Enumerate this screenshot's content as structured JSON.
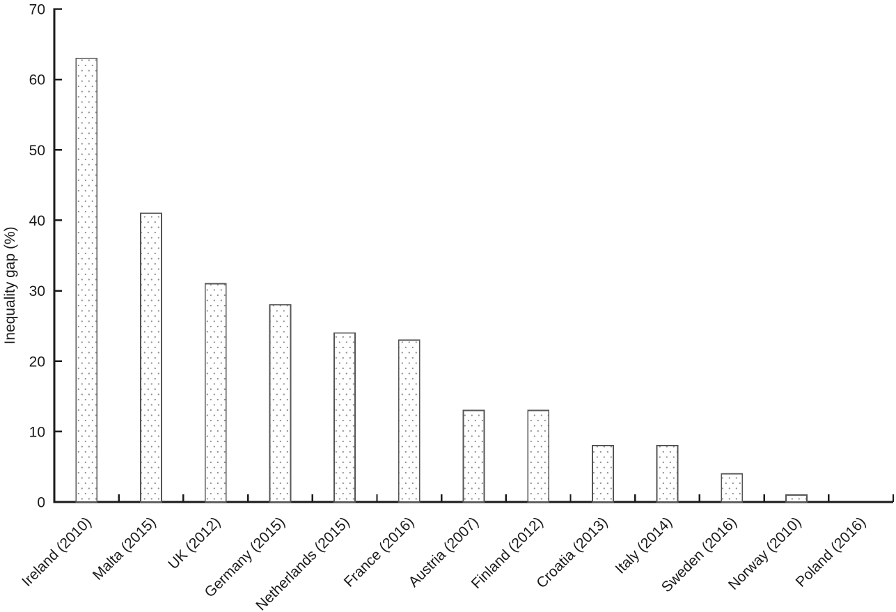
{
  "chart_data": {
    "type": "bar",
    "title": "",
    "xlabel": "",
    "ylabel": "Inequality gap (%)",
    "ylim": [
      0,
      70
    ],
    "yticks": [
      0,
      10,
      20,
      30,
      40,
      50,
      60,
      70
    ],
    "grid": false,
    "legend": null,
    "categories": [
      "Ireland (2010)",
      "Malta (2015)",
      "UK (2012)",
      "Germany (2015)",
      "Netherlands (2015)",
      "France (2016)",
      "Austria (2007)",
      "Finland (2012)",
      "Croatia (2013)",
      "Italy (2014)",
      "Sweden (2016)",
      "Norway (2010)",
      "Poland (2016)"
    ],
    "values": [
      63,
      41,
      31,
      28,
      24,
      23,
      13,
      13,
      8,
      8,
      4,
      1,
      0
    ],
    "bar_style": "white fill with light gray stipple dots and gray outline",
    "colors": {
      "background": "#ffffff",
      "axis": "#1a1a1a",
      "text": "#1a1a1a",
      "bar_fill": "#ffffff",
      "bar_border": "#555555",
      "bar_dot": "#8f8f8f"
    }
  }
}
